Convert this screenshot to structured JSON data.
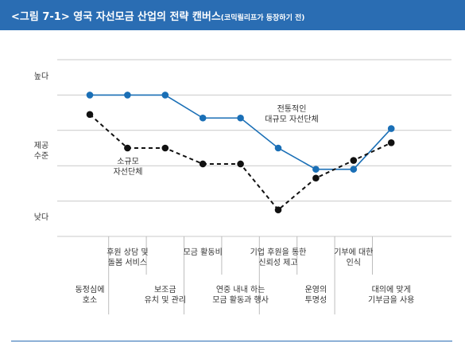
{
  "title": "<그림 7-1> 영국 자선모금 산업의 전략 캔버스",
  "subtitle": "(코믹릴리프가 등장하기 전)",
  "chart_data": {
    "type": "line",
    "categories": [
      [
        "동정심에",
        "호소"
      ],
      [
        "후원 상담 및",
        "돌봄 서비스"
      ],
      [
        "보조금",
        "유치 및 관리"
      ],
      [
        "모금 활동비"
      ],
      [
        "연중 내내 하는",
        "모금 활동과 행사"
      ],
      [
        "기업 후원을 통한",
        "신뢰성 제고"
      ],
      [
        "운영의",
        "투명성"
      ],
      [
        "기부에 대한",
        "인식"
      ],
      [
        "대의에 맞게",
        "기부금을 사용"
      ]
    ],
    "y_labels": {
      "high": "높다",
      "mid": [
        "제공",
        "수준"
      ],
      "low": "낮다"
    },
    "ylim": [
      0,
      5
    ],
    "grid": true,
    "series": [
      {
        "name": [
          "전통적인",
          "대규모 자선단체"
        ],
        "color": "#1a6fb6",
        "dash": false,
        "values": [
          4.0,
          4.0,
          4.0,
          3.35,
          3.35,
          2.5,
          1.9,
          1.9,
          3.05
        ]
      },
      {
        "name": [
          "소규모",
          "자선단체"
        ],
        "color": "#111111",
        "dash": true,
        "values": [
          3.45,
          2.5,
          2.5,
          2.05,
          2.05,
          0.75,
          1.65,
          2.15,
          2.65
        ]
      }
    ]
  },
  "colors": {
    "header": "#2a6db3",
    "grid": "#c9c9c9"
  }
}
